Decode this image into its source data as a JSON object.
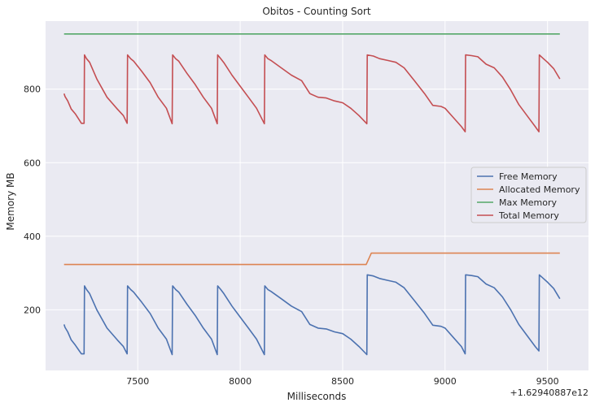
{
  "chart_data": {
    "type": "line",
    "title": "Obitos - Counting Sort",
    "xlabel": "Milliseconds",
    "ylabel": "Memory MB",
    "x_offset_label": "+1.62940887e12",
    "xlim": [
      7050,
      9700
    ],
    "ylim": [
      35,
      985
    ],
    "x_ticks": [
      7500,
      8000,
      8500,
      9000,
      9500
    ],
    "y_ticks": [
      200,
      400,
      600,
      800
    ],
    "grid": true,
    "legend_position": "center-right",
    "series": [
      {
        "name": "Free Memory",
        "color": "#4c72b0",
        "points": [
          [
            7140,
            160
          ],
          [
            7145,
            152
          ],
          [
            7158,
            140
          ],
          [
            7175,
            118
          ],
          [
            7195,
            104
          ],
          [
            7215,
            88
          ],
          [
            7225,
            80
          ],
          [
            7238,
            80
          ],
          [
            7240,
            265
          ],
          [
            7250,
            255
          ],
          [
            7265,
            244
          ],
          [
            7300,
            200
          ],
          [
            7350,
            150
          ],
          [
            7400,
            118
          ],
          [
            7430,
            100
          ],
          [
            7448,
            80
          ],
          [
            7450,
            265
          ],
          [
            7465,
            255
          ],
          [
            7480,
            248
          ],
          [
            7520,
            220
          ],
          [
            7560,
            190
          ],
          [
            7600,
            150
          ],
          [
            7640,
            120
          ],
          [
            7668,
            78
          ],
          [
            7670,
            265
          ],
          [
            7685,
            255
          ],
          [
            7700,
            248
          ],
          [
            7740,
            215
          ],
          [
            7780,
            185
          ],
          [
            7820,
            150
          ],
          [
            7860,
            120
          ],
          [
            7888,
            78
          ],
          [
            7890,
            265
          ],
          [
            7905,
            255
          ],
          [
            7920,
            244
          ],
          [
            7960,
            210
          ],
          [
            8000,
            180
          ],
          [
            8040,
            150
          ],
          [
            8080,
            120
          ],
          [
            8118,
            78
          ],
          [
            8120,
            265
          ],
          [
            8135,
            255
          ],
          [
            8150,
            250
          ],
          [
            8200,
            230
          ],
          [
            8250,
            210
          ],
          [
            8300,
            195
          ],
          [
            8340,
            160
          ],
          [
            8380,
            150
          ],
          [
            8420,
            148
          ],
          [
            8460,
            140
          ],
          [
            8500,
            135
          ],
          [
            8540,
            120
          ],
          [
            8580,
            100
          ],
          [
            8618,
            78
          ],
          [
            8620,
            295
          ],
          [
            8650,
            292
          ],
          [
            8680,
            285
          ],
          [
            8720,
            280
          ],
          [
            8760,
            275
          ],
          [
            8800,
            260
          ],
          [
            8850,
            225
          ],
          [
            8900,
            190
          ],
          [
            8940,
            158
          ],
          [
            8980,
            155
          ],
          [
            9000,
            150
          ],
          [
            9040,
            125
          ],
          [
            9080,
            100
          ],
          [
            9098,
            80
          ],
          [
            9100,
            295
          ],
          [
            9130,
            293
          ],
          [
            9160,
            290
          ],
          [
            9200,
            270
          ],
          [
            9240,
            260
          ],
          [
            9280,
            235
          ],
          [
            9320,
            200
          ],
          [
            9360,
            160
          ],
          [
            9400,
            130
          ],
          [
            9440,
            100
          ],
          [
            9458,
            88
          ],
          [
            9460,
            295
          ],
          [
            9480,
            285
          ],
          [
            9500,
            275
          ],
          [
            9530,
            258
          ],
          [
            9560,
            230
          ]
        ]
      },
      {
        "name": "Allocated Memory",
        "color": "#dd8452",
        "points": [
          [
            7140,
            323
          ],
          [
            8615,
            323
          ],
          [
            8640,
            354
          ],
          [
            9560,
            354
          ]
        ]
      },
      {
        "name": "Max Memory",
        "color": "#55a868",
        "points": [
          [
            7140,
            950
          ],
          [
            9560,
            950
          ]
        ]
      },
      {
        "name": "Total Memory",
        "color": "#c44e52",
        "points": [
          [
            7140,
            788
          ],
          [
            7145,
            780
          ],
          [
            7158,
            768
          ],
          [
            7175,
            746
          ],
          [
            7195,
            733
          ],
          [
            7215,
            716
          ],
          [
            7225,
            707
          ],
          [
            7238,
            707
          ],
          [
            7240,
            893
          ],
          [
            7250,
            883
          ],
          [
            7265,
            873
          ],
          [
            7300,
            828
          ],
          [
            7350,
            778
          ],
          [
            7400,
            746
          ],
          [
            7430,
            728
          ],
          [
            7448,
            707
          ],
          [
            7450,
            893
          ],
          [
            7465,
            883
          ],
          [
            7480,
            876
          ],
          [
            7520,
            848
          ],
          [
            7560,
            818
          ],
          [
            7600,
            778
          ],
          [
            7640,
            748
          ],
          [
            7668,
            706
          ],
          [
            7670,
            893
          ],
          [
            7685,
            883
          ],
          [
            7700,
            876
          ],
          [
            7740,
            843
          ],
          [
            7780,
            813
          ],
          [
            7820,
            778
          ],
          [
            7860,
            748
          ],
          [
            7888,
            706
          ],
          [
            7890,
            893
          ],
          [
            7905,
            883
          ],
          [
            7920,
            872
          ],
          [
            7960,
            838
          ],
          [
            8000,
            808
          ],
          [
            8040,
            778
          ],
          [
            8080,
            748
          ],
          [
            8118,
            706
          ],
          [
            8120,
            893
          ],
          [
            8135,
            883
          ],
          [
            8150,
            878
          ],
          [
            8200,
            858
          ],
          [
            8250,
            838
          ],
          [
            8300,
            823
          ],
          [
            8340,
            788
          ],
          [
            8380,
            778
          ],
          [
            8420,
            776
          ],
          [
            8460,
            768
          ],
          [
            8500,
            763
          ],
          [
            8540,
            748
          ],
          [
            8580,
            728
          ],
          [
            8618,
            706
          ],
          [
            8620,
            893
          ],
          [
            8650,
            890
          ],
          [
            8680,
            883
          ],
          [
            8720,
            878
          ],
          [
            8760,
            873
          ],
          [
            8800,
            858
          ],
          [
            8850,
            823
          ],
          [
            8900,
            788
          ],
          [
            8940,
            756
          ],
          [
            8980,
            753
          ],
          [
            9000,
            748
          ],
          [
            9040,
            723
          ],
          [
            9080,
            698
          ],
          [
            9098,
            684
          ],
          [
            9100,
            893
          ],
          [
            9130,
            891
          ],
          [
            9160,
            888
          ],
          [
            9200,
            868
          ],
          [
            9240,
            858
          ],
          [
            9280,
            833
          ],
          [
            9320,
            798
          ],
          [
            9360,
            758
          ],
          [
            9400,
            728
          ],
          [
            9440,
            698
          ],
          [
            9458,
            684
          ],
          [
            9460,
            893
          ],
          [
            9480,
            883
          ],
          [
            9500,
            873
          ],
          [
            9530,
            856
          ],
          [
            9560,
            828
          ]
        ]
      }
    ]
  }
}
